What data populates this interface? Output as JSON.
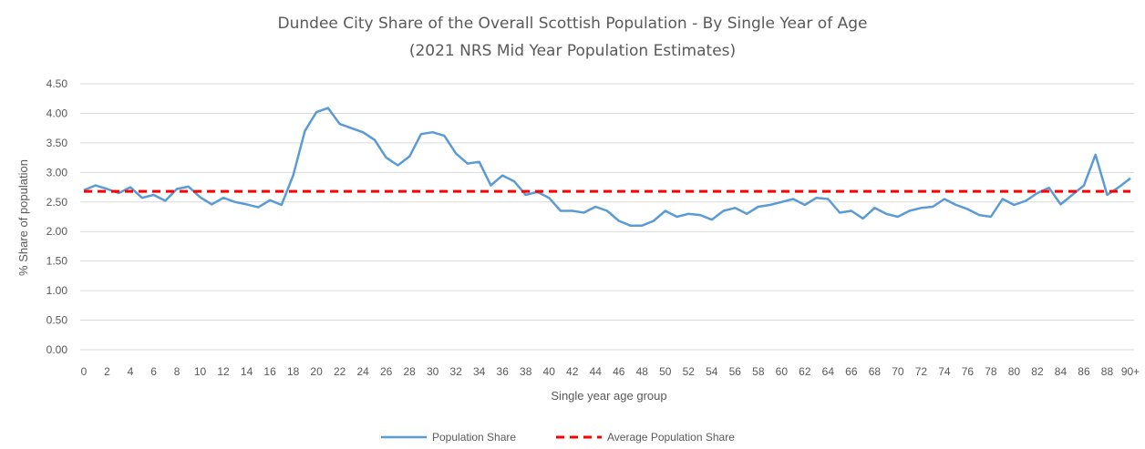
{
  "chart_data": {
    "type": "line",
    "title": "Dundee City Share of the Overall Scottish Population - By Single Year of Age",
    "subtitle": "(2021 NRS Mid Year Population Estimates)",
    "xlabel": "Single year age group",
    "ylabel": "% Share of population",
    "ylim": [
      0,
      4.5
    ],
    "yticks": [
      "0.00",
      "0.50",
      "1.00",
      "1.50",
      "2.00",
      "2.50",
      "3.00",
      "3.50",
      "4.00",
      "4.50"
    ],
    "grid": true,
    "legend_position": "bottom",
    "categories": [
      "0",
      "1",
      "2",
      "3",
      "4",
      "5",
      "6",
      "7",
      "8",
      "9",
      "10",
      "11",
      "12",
      "13",
      "14",
      "15",
      "16",
      "17",
      "18",
      "19",
      "20",
      "21",
      "22",
      "23",
      "24",
      "25",
      "26",
      "27",
      "28",
      "29",
      "30",
      "31",
      "32",
      "33",
      "34",
      "35",
      "36",
      "37",
      "38",
      "39",
      "40",
      "41",
      "42",
      "43",
      "44",
      "45",
      "46",
      "47",
      "48",
      "49",
      "50",
      "51",
      "52",
      "53",
      "54",
      "55",
      "56",
      "57",
      "58",
      "59",
      "60",
      "61",
      "62",
      "63",
      "64",
      "65",
      "66",
      "67",
      "68",
      "69",
      "70",
      "71",
      "72",
      "73",
      "74",
      "75",
      "76",
      "77",
      "78",
      "79",
      "80",
      "81",
      "82",
      "83",
      "84",
      "85",
      "86",
      "87",
      "88",
      "89",
      "90+"
    ],
    "xtick_labels": [
      "0",
      "",
      "2",
      "",
      "4",
      "",
      "6",
      "",
      "8",
      "",
      "10",
      "",
      "12",
      "",
      "14",
      "",
      "16",
      "",
      "18",
      "",
      "20",
      "",
      "22",
      "",
      "24",
      "",
      "26",
      "",
      "28",
      "",
      "30",
      "",
      "32",
      "",
      "34",
      "",
      "36",
      "",
      "38",
      "",
      "40",
      "",
      "42",
      "",
      "44",
      "",
      "46",
      "",
      "48",
      "",
      "50",
      "",
      "52",
      "",
      "54",
      "",
      "56",
      "",
      "58",
      "",
      "60",
      "",
      "62",
      "",
      "64",
      "",
      "66",
      "",
      "68",
      "",
      "70",
      "",
      "72",
      "",
      "74",
      "",
      "76",
      "",
      "78",
      "",
      "80",
      "",
      "82",
      "",
      "84",
      "",
      "86",
      "",
      "88",
      "",
      "90+"
    ],
    "series": [
      {
        "name": "Population Share",
        "color": "#5b9bd5",
        "style": "solid",
        "values": [
          2.7,
          2.78,
          2.72,
          2.65,
          2.75,
          2.57,
          2.62,
          2.52,
          2.72,
          2.76,
          2.58,
          2.46,
          2.57,
          2.5,
          2.46,
          2.41,
          2.53,
          2.45,
          2.95,
          3.7,
          4.02,
          4.09,
          3.82,
          3.75,
          3.68,
          3.55,
          3.25,
          3.12,
          3.27,
          3.65,
          3.68,
          3.62,
          3.32,
          3.15,
          3.18,
          2.78,
          2.95,
          2.85,
          2.62,
          2.67,
          2.57,
          2.35,
          2.35,
          2.32,
          2.42,
          2.35,
          2.18,
          2.1,
          2.1,
          2.18,
          2.35,
          2.25,
          2.3,
          2.28,
          2.2,
          2.35,
          2.4,
          2.3,
          2.42,
          2.45,
          2.5,
          2.55,
          2.45,
          2.57,
          2.55,
          2.32,
          2.35,
          2.22,
          2.4,
          2.3,
          2.25,
          2.35,
          2.4,
          2.42,
          2.55,
          2.45,
          2.38,
          2.28,
          2.25,
          2.55,
          2.45,
          2.52,
          2.65,
          2.74,
          2.46,
          2.62,
          2.78,
          3.3,
          2.62,
          2.75,
          2.9
        ]
      },
      {
        "name": "Average Population Share",
        "color": "#ff0000",
        "style": "dashed",
        "values": [
          2.68,
          2.68,
          2.68,
          2.68,
          2.68,
          2.68,
          2.68,
          2.68,
          2.68,
          2.68,
          2.68,
          2.68,
          2.68,
          2.68,
          2.68,
          2.68,
          2.68,
          2.68,
          2.68,
          2.68,
          2.68,
          2.68,
          2.68,
          2.68,
          2.68,
          2.68,
          2.68,
          2.68,
          2.68,
          2.68,
          2.68,
          2.68,
          2.68,
          2.68,
          2.68,
          2.68,
          2.68,
          2.68,
          2.68,
          2.68,
          2.68,
          2.68,
          2.68,
          2.68,
          2.68,
          2.68,
          2.68,
          2.68,
          2.68,
          2.68,
          2.68,
          2.68,
          2.68,
          2.68,
          2.68,
          2.68,
          2.68,
          2.68,
          2.68,
          2.68,
          2.68,
          2.68,
          2.68,
          2.68,
          2.68,
          2.68,
          2.68,
          2.68,
          2.68,
          2.68,
          2.68,
          2.68,
          2.68,
          2.68,
          2.68,
          2.68,
          2.68,
          2.68,
          2.68,
          2.68,
          2.68,
          2.68,
          2.68,
          2.68,
          2.68,
          2.68,
          2.68,
          2.68,
          2.68,
          2.68,
          2.68
        ]
      }
    ]
  }
}
